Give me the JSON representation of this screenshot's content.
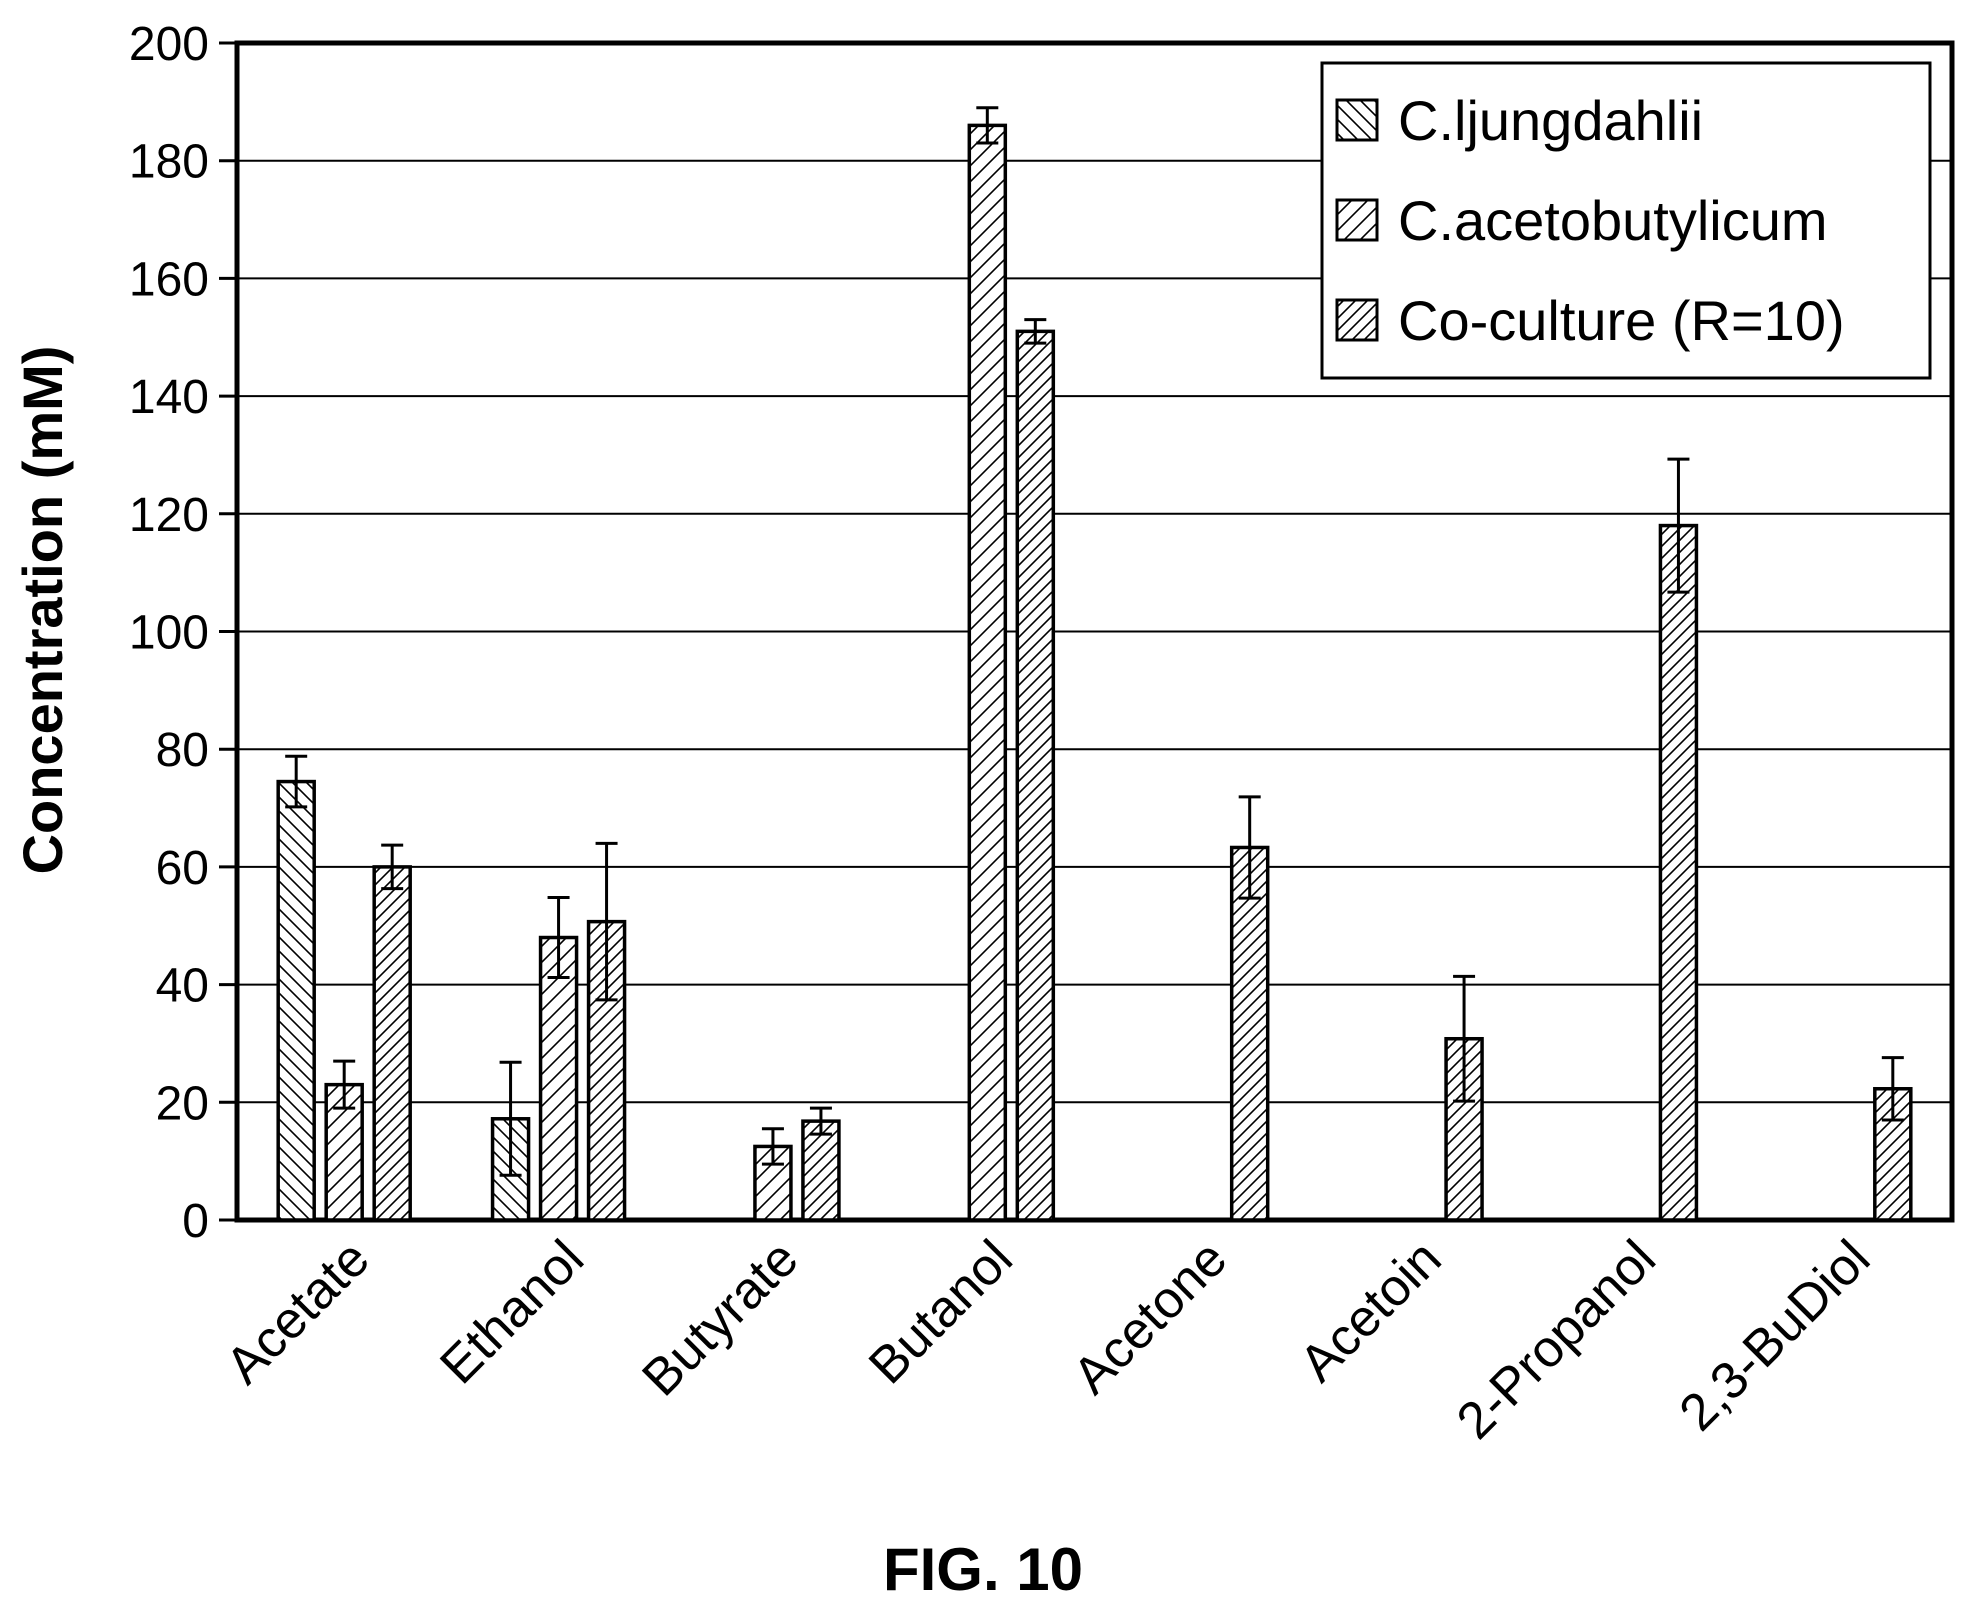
{
  "figure_label": "FIG. 10",
  "chart_data": {
    "type": "bar",
    "ylabel": "Concentration (mM)",
    "xlabel": "",
    "ylim": [
      0,
      200
    ],
    "yticks": [
      0,
      20,
      40,
      60,
      80,
      100,
      120,
      140,
      160,
      180,
      200
    ],
    "grid": true,
    "legend_position": "top-right",
    "categories": [
      "Acetate",
      "Ethanol",
      "Butyrate",
      "Butanol",
      "Acetone",
      "Acetoin",
      "2-Propanol",
      "2,3-BuDiol"
    ],
    "series": [
      {
        "name": "C.ljungdahlii",
        "pattern": "back-diagonal-hatch",
        "values": [
          74.5,
          17.2,
          null,
          null,
          null,
          null,
          null,
          null
        ],
        "errors": [
          4.3,
          9.6,
          null,
          null,
          null,
          null,
          null,
          null
        ]
      },
      {
        "name": "C.acetobutylicum",
        "pattern": "diagonal-hatch",
        "values": [
          23,
          48,
          12.5,
          186,
          null,
          null,
          null,
          null
        ],
        "errors": [
          4,
          6.8,
          3,
          3,
          null,
          null,
          null,
          null
        ]
      },
      {
        "name": "Co-culture (R=10)",
        "pattern": "dense-diagonal-hatch",
        "values": [
          60,
          50.7,
          16.8,
          151,
          63.3,
          30.8,
          118,
          22.3
        ],
        "errors": [
          3.7,
          13.3,
          2.2,
          2,
          8.6,
          10.6,
          11.3,
          5.3
        ]
      }
    ]
  }
}
